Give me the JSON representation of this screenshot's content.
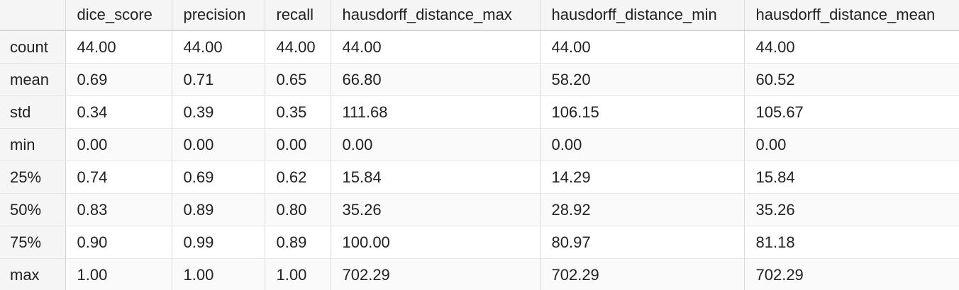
{
  "table": {
    "columns": [
      "",
      "dice_score",
      "precision",
      "recall",
      "hausdorff_distance_max",
      "hausdorff_distance_min",
      "hausdorff_distance_mean"
    ],
    "rows": [
      {
        "label": "count",
        "values": [
          "44.00",
          "44.00",
          "44.00",
          "44.00",
          "44.00",
          "44.00"
        ]
      },
      {
        "label": "mean",
        "values": [
          "0.69",
          "0.71",
          "0.65",
          "66.80",
          "58.20",
          "60.52"
        ]
      },
      {
        "label": "std",
        "values": [
          "0.34",
          "0.39",
          "0.35",
          "111.68",
          "106.15",
          "105.67"
        ]
      },
      {
        "label": "min",
        "values": [
          "0.00",
          "0.00",
          "0.00",
          "0.00",
          "0.00",
          "0.00"
        ]
      },
      {
        "label": "25%",
        "values": [
          "0.74",
          "0.69",
          "0.62",
          "15.84",
          "14.29",
          "15.84"
        ]
      },
      {
        "label": "50%",
        "values": [
          "0.83",
          "0.89",
          "0.80",
          "35.26",
          "28.92",
          "35.26"
        ]
      },
      {
        "label": "75%",
        "values": [
          "0.90",
          "0.99",
          "0.89",
          "100.00",
          "80.97",
          "81.18"
        ]
      },
      {
        "label": "max",
        "values": [
          "1.00",
          "1.00",
          "1.00",
          "702.29",
          "702.29",
          "702.29"
        ]
      }
    ]
  }
}
